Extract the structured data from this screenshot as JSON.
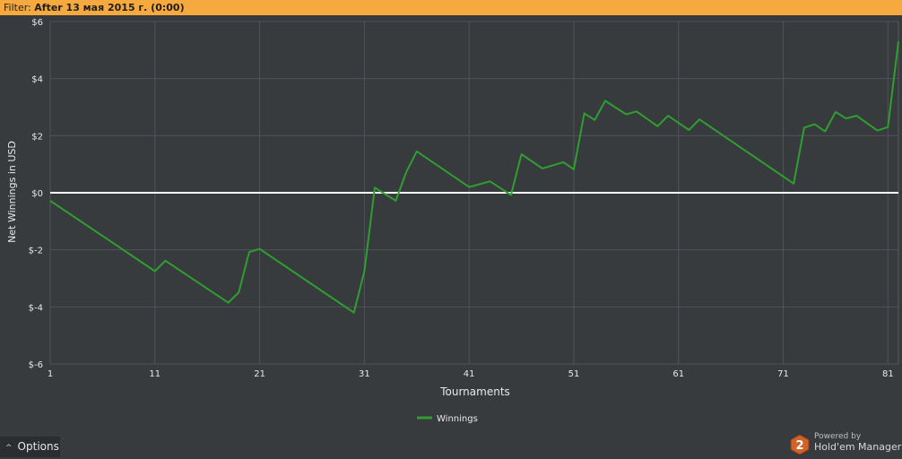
{
  "filter": {
    "prefix": "Filter: ",
    "value": "After 13 мая 2015 г. (0:00)"
  },
  "colors": {
    "filter_bar": "#f6a93e",
    "background": "#383b3e",
    "grid": "#4f5357",
    "zero_line": "#ffffff",
    "series": "#2f9e2f"
  },
  "chart_data": {
    "type": "line",
    "title": "",
    "xlabel": "Tournaments",
    "ylabel": "Net Winnings in USD",
    "xlim": [
      1,
      82
    ],
    "ylim": [
      -6,
      6
    ],
    "x_ticks": [
      1,
      11,
      21,
      31,
      41,
      51,
      61,
      71,
      81
    ],
    "x_tick_labels": [
      "1",
      "11",
      "21",
      "31",
      "41",
      "51",
      "61",
      "71",
      "81"
    ],
    "y_ticks": [
      6,
      4,
      2,
      0,
      -2,
      -4,
      -6
    ],
    "y_tick_labels": [
      "$6",
      "$4",
      "$2",
      "$0",
      "$-2",
      "$-4",
      "$-6"
    ],
    "grid": true,
    "zero_line": true,
    "legend_position": "bottom-center",
    "series": [
      {
        "name": "Winnings",
        "points": [
          [
            1,
            -0.28
          ],
          [
            11,
            -2.75
          ],
          [
            12,
            -2.38
          ],
          [
            18,
            -3.85
          ],
          [
            19,
            -3.5
          ],
          [
            20,
            -2.08
          ],
          [
            21,
            -1.97
          ],
          [
            30,
            -4.2
          ],
          [
            31,
            -2.75
          ],
          [
            32,
            0.18
          ],
          [
            34,
            -0.28
          ],
          [
            35,
            0.72
          ],
          [
            36,
            1.45
          ],
          [
            41,
            0.2
          ],
          [
            43,
            0.4
          ],
          [
            45,
            -0.08
          ],
          [
            46,
            1.35
          ],
          [
            48,
            0.85
          ],
          [
            50,
            1.07
          ],
          [
            51,
            0.82
          ],
          [
            52,
            2.78
          ],
          [
            53,
            2.55
          ],
          [
            54,
            3.22
          ],
          [
            56,
            2.75
          ],
          [
            57,
            2.85
          ],
          [
            59,
            2.33
          ],
          [
            60,
            2.7
          ],
          [
            62,
            2.2
          ],
          [
            63,
            2.57
          ],
          [
            72,
            0.32
          ],
          [
            73,
            2.28
          ],
          [
            74,
            2.4
          ],
          [
            75,
            2.15
          ],
          [
            76,
            2.83
          ],
          [
            77,
            2.6
          ],
          [
            78,
            2.7
          ],
          [
            80,
            2.18
          ],
          [
            81,
            2.3
          ],
          [
            82,
            5.3
          ]
        ]
      }
    ]
  },
  "options": {
    "label": "Options",
    "caret": "^"
  },
  "branding": {
    "powered_by": "Powered by",
    "product": "Hold'em Manager",
    "logo_number": "2"
  }
}
